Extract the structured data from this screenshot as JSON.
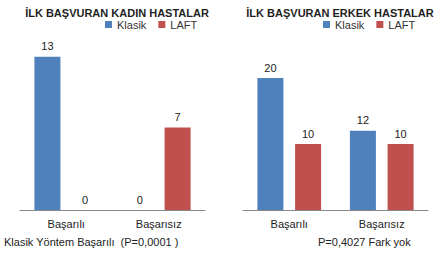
{
  "chart_data": [
    {
      "type": "bar",
      "title": "İLK BAŞVURAN KADIN HASTALAR",
      "categories": [
        "Başarılı",
        "Başarısız"
      ],
      "series": [
        {
          "name": "Klasik",
          "color": "#4f81bd",
          "values": [
            13,
            0
          ]
        },
        {
          "name": "LAFT",
          "color": "#c0504d",
          "values": [
            0,
            7
          ]
        }
      ],
      "ylim": [
        0,
        14
      ],
      "yticks": [
        0,
        2,
        4,
        6,
        8,
        10,
        12,
        14
      ],
      "grid": false,
      "data_labels": true,
      "tick_labels": "x",
      "legend": "top",
      "annotations": [
        "Klasik Yöntem Başarılı  (P=0,0001 )"
      ]
    },
    {
      "type": "bar",
      "title": "İLK BAŞVURAN ERKEK HASTALAR",
      "categories": [
        "Başarılı",
        "Başarısız"
      ],
      "series": [
        {
          "name": "Klasik",
          "color": "#4f81bd",
          "values": [
            20,
            12
          ]
        },
        {
          "name": "LAFT",
          "color": "#c0504d",
          "values": [
            10,
            10
          ]
        }
      ],
      "ylim": [
        0,
        25
      ],
      "yticks": [
        0,
        5,
        10,
        15,
        20,
        25
      ],
      "grid": false,
      "data_labels": true,
      "tick_labels": "x",
      "legend": "top",
      "annotations": [
        "P=0,4027 Fark yok"
      ]
    }
  ]
}
